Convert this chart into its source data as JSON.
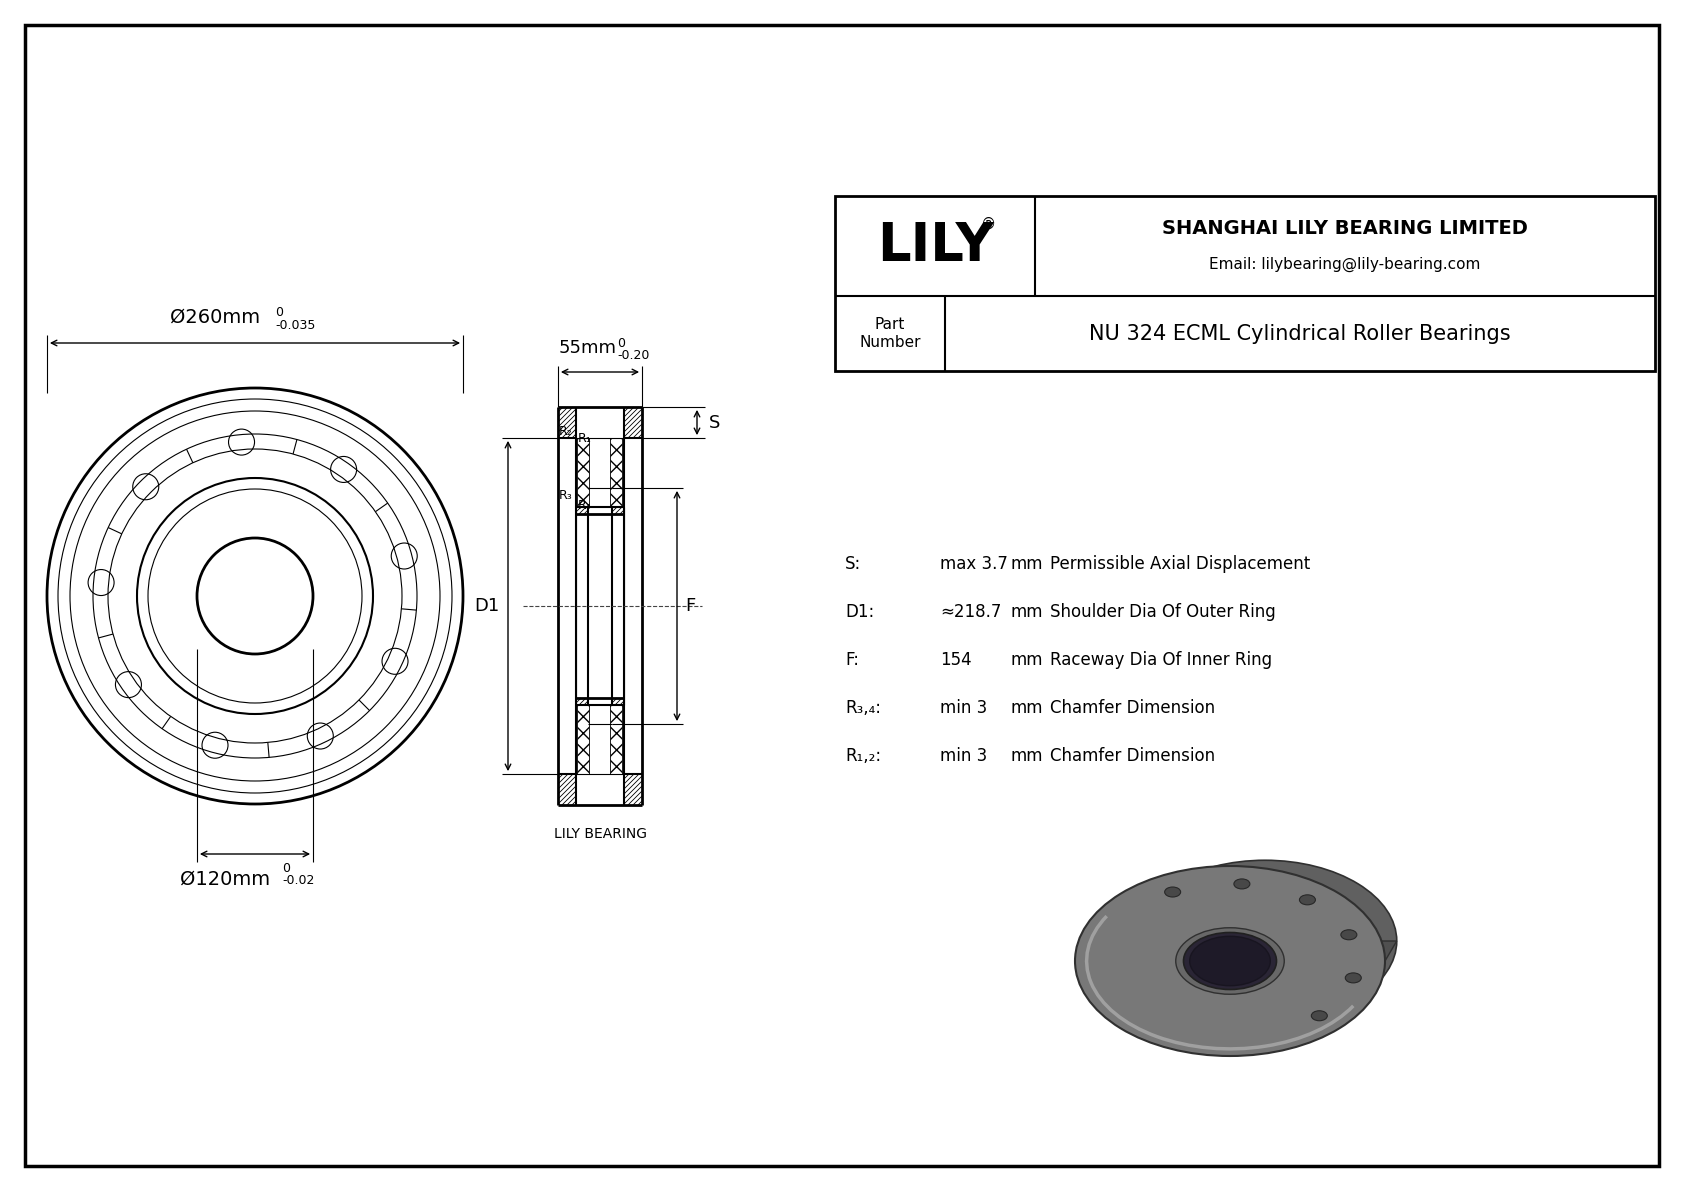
{
  "bg_color": "#ffffff",
  "border_color": "#000000",
  "line_color": "#000000",
  "title": "NU 324 ECML Cylindrical Roller Bearings",
  "company": "SHANGHAI LILY BEARING LIMITED",
  "email": "Email: lilybearing@lily-bearing.com",
  "part_label": "Part\nNumber",
  "lily_text": "LILY",
  "specs": [
    [
      "R₁,₂:",
      "min 3",
      "mm",
      "Chamfer Dimension"
    ],
    [
      "R₃,₄:",
      "min 3",
      "mm",
      "Chamfer Dimension"
    ],
    [
      "F:",
      "154",
      "mm",
      "Raceway Dia Of Inner Ring"
    ],
    [
      "D1:",
      "≈218.7",
      "mm",
      "Shoulder Dia Of Outer Ring"
    ],
    [
      "S:",
      "max 3.7",
      "mm",
      "Permissible Axial Displacement"
    ]
  ],
  "lily_bearing_label": "LILY BEARING",
  "photo_color_outer": "#6a6a6a",
  "photo_color_inner": "#3a3040",
  "photo_color_mid": "#808080"
}
